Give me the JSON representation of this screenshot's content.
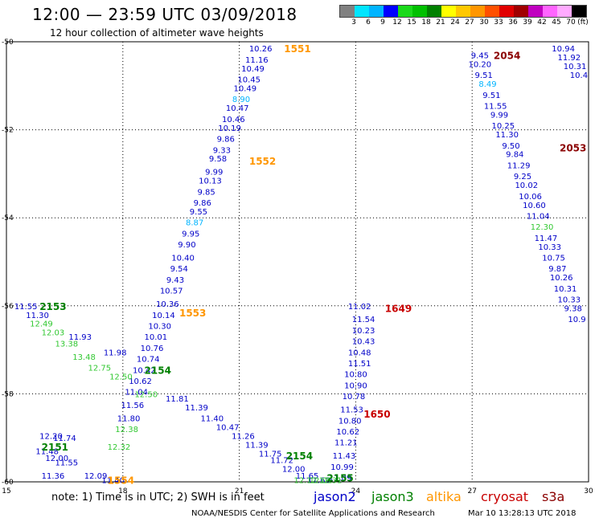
{
  "header": {
    "title": "12:00 — 23:59 UTC 03/09/2018",
    "subtitle": "12 hour collection of altimeter wave heights"
  },
  "legend": {
    "unit": "(ft)",
    "ticks": [
      "3",
      "6",
      "9",
      "12",
      "15",
      "18",
      "21",
      "24",
      "27",
      "30",
      "33",
      "36",
      "39",
      "42",
      "45",
      "70"
    ],
    "colors": [
      "#808080",
      "#00e5ff",
      "#00b4ff",
      "#0000ff",
      "#1ad91a",
      "#00c000",
      "#008000",
      "#ffff00",
      "#ffc800",
      "#ff9600",
      "#ff5000",
      "#e10000",
      "#a00000",
      "#c000c0",
      "#ff64ff",
      "#ffaaff",
      "#000000"
    ]
  },
  "footer": {
    "note": "note:  1) Time is in UTC;  2) SWH is in feet",
    "satellites": [
      {
        "name": "jason2",
        "color": "#0000c8"
      },
      {
        "name": "jason3",
        "color": "#008000"
      },
      {
        "name": "altika",
        "color": "#ff9600"
      },
      {
        "name": "cryosat",
        "color": "#c80000"
      },
      {
        "name": "s3a",
        "color": "#8b0000"
      }
    ],
    "credit": "NOAA/NESDIS Center for Satellite Applications and Research",
    "run_date": "Mar 10 13:28:13 UTC 2018"
  },
  "chart_data": {
    "type": "scatter",
    "xlim": [
      15,
      30
    ],
    "ylim": [
      -60,
      -50
    ],
    "x_ticks": [
      "15",
      "18",
      "21",
      "24",
      "27",
      "30"
    ],
    "y_ticks": [
      "-50",
      "-52",
      "-54",
      "-56",
      "-58",
      "-60"
    ],
    "grid": "dotted",
    "passes": [
      {
        "id": "1551",
        "x": 22.5,
        "y": -50.15,
        "color": "#ff9600"
      },
      {
        "id": "2054",
        "x": 27.9,
        "y": -50.3,
        "color": "#8b0000"
      },
      {
        "id": "1552",
        "x": 21.6,
        "y": -52.7,
        "color": "#ff9600"
      },
      {
        "id": "2053",
        "x": 29.6,
        "y": -52.4,
        "color": "#8b0000"
      },
      {
        "id": "2153",
        "x": 16.2,
        "y": -56.0,
        "color": "#008000"
      },
      {
        "id": "1553",
        "x": 19.8,
        "y": -56.15,
        "color": "#ff9600"
      },
      {
        "id": "1649",
        "x": 25.1,
        "y": -56.05,
        "color": "#c80000"
      },
      {
        "id": "2154",
        "x": 18.9,
        "y": -57.45,
        "color": "#008000"
      },
      {
        "id": "1650",
        "x": 24.55,
        "y": -58.45,
        "color": "#c80000"
      },
      {
        "id": "2151",
        "x": 16.25,
        "y": -59.2,
        "color": "#008000"
      },
      {
        "id": "2154",
        "x": 22.55,
        "y": -59.4,
        "color": "#008000"
      },
      {
        "id": "1554",
        "x": 17.95,
        "y": -59.95,
        "color": "#ff9600"
      },
      {
        "id": "2155",
        "x": 23.6,
        "y": -59.9,
        "color": "#008000"
      }
    ],
    "series": [
      {
        "name": "jason2",
        "color": "#0000c8",
        "points": [
          {
            "x": 21.55,
            "y": -50.15,
            "v": "10.26"
          },
          {
            "x": 21.45,
            "y": -50.4,
            "v": "11.16"
          },
          {
            "x": 21.35,
            "y": -50.6,
            "v": "10.49"
          },
          {
            "x": 21.25,
            "y": -50.85,
            "v": "10.45"
          },
          {
            "x": 21.15,
            "y": -51.05,
            "v": "10.49"
          },
          {
            "x": 21.05,
            "y": -51.3,
            "v": "8.90",
            "color": "#00b4ff"
          },
          {
            "x": 20.95,
            "y": -51.5,
            "v": "10.47"
          },
          {
            "x": 20.85,
            "y": -51.75,
            "v": "10.46"
          },
          {
            "x": 20.75,
            "y": -51.95,
            "v": "10.19"
          },
          {
            "x": 20.65,
            "y": -52.2,
            "v": "9.86"
          },
          {
            "x": 20.55,
            "y": -52.45,
            "v": "9.33"
          },
          {
            "x": 20.45,
            "y": -52.65,
            "v": "9.58"
          },
          {
            "x": 20.35,
            "y": -52.95,
            "v": "9.99"
          },
          {
            "x": 20.25,
            "y": -53.15,
            "v": "10.13"
          },
          {
            "x": 20.15,
            "y": -53.4,
            "v": "9.85"
          },
          {
            "x": 20.05,
            "y": -53.65,
            "v": "9.86"
          },
          {
            "x": 19.95,
            "y": -53.85,
            "v": "9.55"
          },
          {
            "x": 19.85,
            "y": -54.1,
            "v": "8.87",
            "color": "#00b4ff"
          },
          {
            "x": 19.75,
            "y": -54.35,
            "v": "9.95"
          },
          {
            "x": 19.65,
            "y": -54.6,
            "v": "9.90"
          },
          {
            "x": 19.55,
            "y": -54.9,
            "v": "10.40"
          },
          {
            "x": 19.45,
            "y": -55.15,
            "v": "9.54"
          },
          {
            "x": 19.35,
            "y": -55.4,
            "v": "9.43"
          },
          {
            "x": 19.25,
            "y": -55.65,
            "v": "10.57"
          },
          {
            "x": 19.15,
            "y": -55.95,
            "v": "10.36"
          },
          {
            "x": 19.05,
            "y": -56.2,
            "v": "10.14"
          },
          {
            "x": 18.95,
            "y": -56.45,
            "v": "10.30"
          },
          {
            "x": 18.85,
            "y": -56.7,
            "v": "10.01"
          },
          {
            "x": 18.75,
            "y": -56.95,
            "v": "10.76"
          },
          {
            "x": 18.65,
            "y": -57.2,
            "v": "10.74"
          },
          {
            "x": 18.55,
            "y": -57.45,
            "v": "10.42"
          },
          {
            "x": 18.45,
            "y": -57.7,
            "v": "10.62"
          },
          {
            "x": 18.35,
            "y": -57.95,
            "v": "11.04"
          },
          {
            "x": 18.25,
            "y": -58.25,
            "v": "11.56"
          },
          {
            "x": 18.15,
            "y": -58.55,
            "v": "11.80"
          },
          {
            "x": 16.15,
            "y": -58.95,
            "v": "12.20"
          },
          {
            "x": 16.5,
            "y": -59.0,
            "v": "11.74"
          },
          {
            "x": 16.05,
            "y": -59.3,
            "v": "11.48"
          },
          {
            "x": 16.3,
            "y": -59.45,
            "v": "12.00"
          },
          {
            "x": 16.55,
            "y": -59.55,
            "v": "11.55"
          },
          {
            "x": 16.2,
            "y": -59.85,
            "v": "11.36"
          },
          {
            "x": 17.3,
            "y": -59.85,
            "v": "12.09"
          },
          {
            "x": 17.75,
            "y": -59.95,
            "v": "11.40"
          },
          {
            "x": 15.5,
            "y": -56.0,
            "v": "11.55"
          },
          {
            "x": 15.8,
            "y": -56.2,
            "v": "11.30"
          },
          {
            "x": 16.9,
            "y": -56.7,
            "v": "11.93"
          },
          {
            "x": 17.8,
            "y": -57.05,
            "v": "11.98"
          },
          {
            "x": 19.4,
            "y": -58.1,
            "v": "11.81"
          },
          {
            "x": 19.9,
            "y": -58.3,
            "v": "11.39"
          },
          {
            "x": 20.3,
            "y": -58.55,
            "v": "11.40"
          },
          {
            "x": 20.7,
            "y": -58.75,
            "v": "10.47"
          },
          {
            "x": 21.1,
            "y": -58.95,
            "v": "11.26"
          },
          {
            "x": 21.45,
            "y": -59.15,
            "v": "11.39"
          },
          {
            "x": 21.8,
            "y": -59.35,
            "v": "11.75"
          },
          {
            "x": 22.1,
            "y": -59.5,
            "v": "11.72"
          },
          {
            "x": 22.4,
            "y": -59.7,
            "v": "12.00"
          },
          {
            "x": 22.75,
            "y": -59.85,
            "v": "11.65"
          },
          {
            "x": 23.05,
            "y": -59.95,
            "v": "11.60"
          },
          {
            "x": 24.1,
            "y": -56.0,
            "v": "11.02"
          },
          {
            "x": 24.2,
            "y": -56.3,
            "v": "11.54"
          },
          {
            "x": 24.2,
            "y": -56.55,
            "v": "10.23"
          },
          {
            "x": 24.2,
            "y": -56.8,
            "v": "10.43"
          },
          {
            "x": 24.1,
            "y": -57.05,
            "v": "10.48"
          },
          {
            "x": 24.1,
            "y": -57.3,
            "v": "11.51"
          },
          {
            "x": 24.0,
            "y": -57.55,
            "v": "10.80"
          },
          {
            "x": 24.0,
            "y": -57.8,
            "v": "10.90"
          },
          {
            "x": 23.95,
            "y": -58.05,
            "v": "10.78"
          },
          {
            "x": 23.9,
            "y": -58.35,
            "v": "11.53"
          },
          {
            "x": 23.85,
            "y": -58.6,
            "v": "10.80"
          },
          {
            "x": 23.8,
            "y": -58.85,
            "v": "10.62"
          },
          {
            "x": 23.75,
            "y": -59.1,
            "v": "11.21"
          },
          {
            "x": 23.7,
            "y": -59.4,
            "v": "11.43"
          },
          {
            "x": 23.65,
            "y": -59.65,
            "v": "10.99"
          },
          {
            "x": 23.6,
            "y": -59.9,
            "v": "11.09"
          },
          {
            "x": 27.2,
            "y": -50.3,
            "v": "9.45"
          },
          {
            "x": 27.2,
            "y": -50.5,
            "v": "10.20"
          },
          {
            "x": 27.3,
            "y": -50.75,
            "v": "9.51"
          },
          {
            "x": 27.4,
            "y": -50.95,
            "v": "8.49",
            "color": "#00b4ff"
          },
          {
            "x": 27.5,
            "y": -51.2,
            "v": "9.51"
          },
          {
            "x": 27.6,
            "y": -51.45,
            "v": "11.55"
          },
          {
            "x": 27.7,
            "y": -51.65,
            "v": "9.99"
          },
          {
            "x": 27.8,
            "y": -51.9,
            "v": "10.25"
          },
          {
            "x": 27.9,
            "y": -52.1,
            "v": "11.30"
          },
          {
            "x": 28.0,
            "y": -52.35,
            "v": "9.50"
          },
          {
            "x": 28.1,
            "y": -52.55,
            "v": "9.84"
          },
          {
            "x": 28.2,
            "y": -52.8,
            "v": "11.29"
          },
          {
            "x": 28.3,
            "y": -53.05,
            "v": "9.25"
          },
          {
            "x": 28.4,
            "y": -53.25,
            "v": "10.02"
          },
          {
            "x": 28.5,
            "y": -53.5,
            "v": "10.06"
          },
          {
            "x": 28.6,
            "y": -53.7,
            "v": "10.60"
          },
          {
            "x": 28.7,
            "y": -53.95,
            "v": "11.04"
          },
          {
            "x": 28.9,
            "y": -54.45,
            "v": "11.47"
          },
          {
            "x": 29.0,
            "y": -54.65,
            "v": "10.33"
          },
          {
            "x": 29.1,
            "y": -54.9,
            "v": "10.75"
          },
          {
            "x": 29.2,
            "y": -55.15,
            "v": "9.87"
          },
          {
            "x": 29.3,
            "y": -55.35,
            "v": "10.26"
          },
          {
            "x": 29.4,
            "y": -55.6,
            "v": "10.31"
          },
          {
            "x": 29.5,
            "y": -55.85,
            "v": "10.33"
          },
          {
            "x": 29.6,
            "y": -56.05,
            "v": "9.38"
          },
          {
            "x": 29.7,
            "y": -56.3,
            "v": "10.9"
          },
          {
            "x": 29.35,
            "y": -50.15,
            "v": "10.94"
          },
          {
            "x": 29.5,
            "y": -50.35,
            "v": "11.92"
          },
          {
            "x": 29.65,
            "y": -50.55,
            "v": "10.31"
          },
          {
            "x": 29.75,
            "y": -50.75,
            "v": "10.4"
          }
        ]
      },
      {
        "name": "jason3",
        "color": "#32c832",
        "points": [
          {
            "x": 15.9,
            "y": -56.4,
            "v": "12.49"
          },
          {
            "x": 16.2,
            "y": -56.6,
            "v": "12.03"
          },
          {
            "x": 16.55,
            "y": -56.85,
            "v": "13.38"
          },
          {
            "x": 17.0,
            "y": -57.15,
            "v": "13.48"
          },
          {
            "x": 17.4,
            "y": -57.4,
            "v": "12.75"
          },
          {
            "x": 17.95,
            "y": -57.6,
            "v": "12.50"
          },
          {
            "x": 18.6,
            "y": -58.0,
            "v": "12.50"
          },
          {
            "x": 18.1,
            "y": -58.8,
            "v": "12.38"
          },
          {
            "x": 17.9,
            "y": -59.2,
            "v": "12.32"
          },
          {
            "x": 22.7,
            "y": -59.95,
            "v": "12.12"
          },
          {
            "x": 23.1,
            "y": -59.95,
            "v": "12.01"
          },
          {
            "x": 23.35,
            "y": -59.95,
            "v": "12.31"
          },
          {
            "x": 28.8,
            "y": -54.2,
            "v": "12.30"
          }
        ]
      }
    ]
  }
}
